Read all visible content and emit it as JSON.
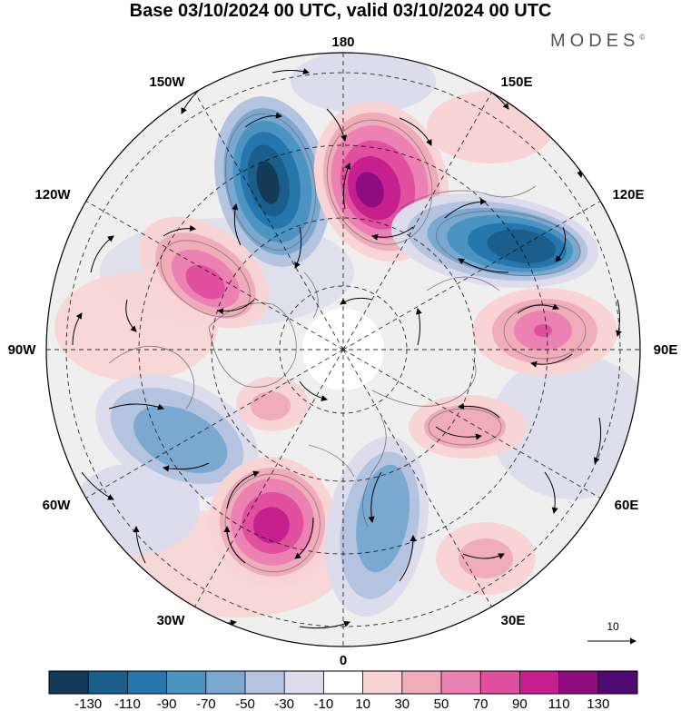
{
  "title": "Base 03/10/2024 00 UTC, valid 03/10/2024 00 UTC",
  "brand": {
    "name": "MODES",
    "mark": "©"
  },
  "map": {
    "projection": "north-polar-stereographic",
    "longitude_labels": {
      "top": "180",
      "bottom": "0",
      "left": "90W",
      "right": "90E",
      "upper_left_1": "150W",
      "upper_left_2": "120W",
      "upper_right_1": "150E",
      "upper_right_2": "120E",
      "lower_left_1": "60W",
      "lower_left_2": "30W",
      "lower_right_1": "60E",
      "lower_right_2": "30E"
    },
    "vector_reference": {
      "value": "10"
    },
    "anomaly_centers": [
      {
        "sign": "negative",
        "value": -130,
        "color": "#1c5f92"
      },
      {
        "sign": "positive",
        "value": 110,
        "color": "#a0128e"
      },
      {
        "sign": "negative",
        "value": -110,
        "color": "#1f6696"
      },
      {
        "sign": "positive",
        "value": 70,
        "color": "#d94aa6"
      },
      {
        "sign": "positive",
        "value": 50,
        "color": "#e37fb3"
      },
      {
        "sign": "negative",
        "value": -50,
        "color": "#8db0d6"
      },
      {
        "sign": "positive",
        "value": 90,
        "color": "#c2289b"
      },
      {
        "sign": "negative",
        "value": -50,
        "color": "#8db0d6"
      },
      {
        "sign": "positive",
        "value": 30,
        "color": "#f0a9b4"
      },
      {
        "sign": "positive",
        "value": 30,
        "color": "#f0a9b4"
      },
      {
        "sign": "positive",
        "value": 30,
        "color": "#f0a9b4"
      }
    ]
  },
  "colorbar": {
    "colors": [
      "#143a57",
      "#1a5f8c",
      "#2676ad",
      "#4b93c1",
      "#7aa8d1",
      "#b3c3e0",
      "#dcdcec",
      "#ffffff",
      "#f8d5d4",
      "#f0adb9",
      "#ec82b3",
      "#e0509f",
      "#c61f8e",
      "#8f0c80",
      "#4e0a72"
    ],
    "labels": [
      "-130",
      "-110",
      "-90",
      "-70",
      "-50",
      "-30",
      "-10",
      "10",
      "30",
      "50",
      "70",
      "90",
      "110",
      "130"
    ]
  }
}
